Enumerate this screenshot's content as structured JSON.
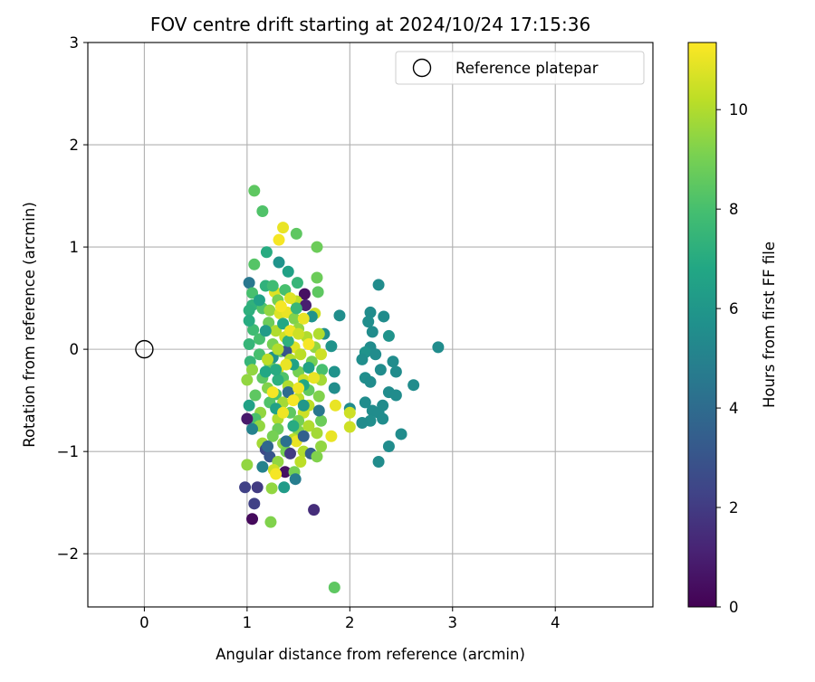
{
  "chart_data": {
    "type": "scatter",
    "title": "FOV centre drift starting at 2024/10/24 17:15:36",
    "xlabel": "Angular distance from reference (arcmin)",
    "ylabel": "Rotation from reference (arcmin)",
    "xlim": [
      -0.55,
      4.95
    ],
    "ylim": [
      -2.52,
      3.0
    ],
    "xticks": [
      0,
      1,
      2,
      3,
      4
    ],
    "xtick_labels": [
      "0",
      "1",
      "2",
      "3",
      "4"
    ],
    "yticks": [
      -2,
      -1,
      0,
      1,
      2,
      3
    ],
    "ytick_labels": [
      "−2",
      "−1",
      "0",
      "1",
      "2",
      "3"
    ],
    "grid": true,
    "legend": {
      "position": "top-right",
      "entries": [
        "Reference platepar"
      ]
    },
    "reference_point": {
      "x": 0,
      "y": 0,
      "label": "Reference platepar"
    },
    "colorbar": {
      "label": "Hours from first FF file",
      "colormap": "viridis",
      "range": [
        0,
        11.35
      ],
      "ticks": [
        0,
        2,
        4,
        6,
        8,
        10
      ],
      "tick_labels": [
        "0",
        "2",
        "4",
        "6",
        "8",
        "10"
      ]
    },
    "series": [
      {
        "name": "Hours from first FF file",
        "points": [
          [
            1.07,
            1.55,
            8.5
          ],
          [
            1.15,
            1.35,
            8.2
          ],
          [
            1.35,
            1.19,
            11.0
          ],
          [
            1.48,
            1.13,
            8.5
          ],
          [
            1.31,
            1.07,
            11.2
          ],
          [
            1.68,
            1.0,
            8.8
          ],
          [
            1.19,
            0.95,
            7.0
          ],
          [
            1.31,
            0.85,
            5.8
          ],
          [
            1.07,
            0.83,
            8.3
          ],
          [
            1.4,
            0.76,
            6.5
          ],
          [
            1.68,
            0.7,
            8.8
          ],
          [
            1.49,
            0.65,
            7.5
          ],
          [
            1.02,
            0.65,
            4.5
          ],
          [
            1.18,
            0.62,
            7.3
          ],
          [
            2.28,
            0.63,
            5.5
          ],
          [
            1.27,
            0.56,
            10.8
          ],
          [
            1.69,
            0.56,
            8.5
          ],
          [
            1.05,
            0.55,
            8.0
          ],
          [
            1.56,
            0.54,
            0.5
          ],
          [
            1.37,
            0.58,
            8.0
          ],
          [
            1.3,
            0.48,
            9.0
          ],
          [
            1.48,
            0.47,
            10.2
          ],
          [
            1.57,
            0.43,
            1.0
          ],
          [
            1.05,
            0.43,
            7.3
          ],
          [
            1.15,
            0.4,
            8.2
          ],
          [
            1.22,
            0.38,
            9.5
          ],
          [
            1.32,
            0.35,
            10.8
          ],
          [
            1.39,
            0.36,
            11.0
          ],
          [
            1.66,
            0.35,
            10.5
          ],
          [
            1.02,
            0.38,
            7.2
          ],
          [
            1.21,
            0.26,
            8.8
          ],
          [
            1.46,
            0.3,
            9.2
          ],
          [
            1.63,
            0.32,
            5.8
          ],
          [
            1.9,
            0.33,
            5.6
          ],
          [
            2.2,
            0.36,
            5.5
          ],
          [
            2.33,
            0.32,
            5.5
          ],
          [
            1.28,
            0.18,
            10.0
          ],
          [
            1.5,
            0.2,
            9.5
          ],
          [
            1.06,
            0.19,
            7.8
          ],
          [
            2.18,
            0.27,
            5.6
          ],
          [
            1.12,
            0.1,
            8.0
          ],
          [
            1.37,
            0.12,
            10.5
          ],
          [
            1.58,
            0.12,
            10.0
          ],
          [
            1.75,
            0.15,
            5.6
          ],
          [
            2.22,
            0.17,
            5.5
          ],
          [
            2.38,
            0.13,
            5.8
          ],
          [
            1.02,
            0.05,
            7.5
          ],
          [
            1.25,
            0.05,
            9.0
          ],
          [
            1.46,
            0.02,
            10.8
          ],
          [
            1.66,
            0.02,
            9.5
          ],
          [
            1.82,
            0.03,
            5.8
          ],
          [
            2.2,
            0.02,
            5.5
          ],
          [
            2.86,
            0.02,
            5.5
          ],
          [
            1.33,
            -0.02,
            8.5
          ],
          [
            1.12,
            -0.05,
            8.0
          ],
          [
            1.38,
            -0.02,
            3.0
          ],
          [
            1.52,
            -0.05,
            10.2
          ],
          [
            1.72,
            -0.05,
            10.5
          ],
          [
            2.15,
            -0.03,
            5.8
          ],
          [
            2.25,
            -0.05,
            5.5
          ],
          [
            1.03,
            -0.12,
            7.5
          ],
          [
            1.22,
            -0.14,
            8.8
          ],
          [
            1.42,
            -0.1,
            10.0
          ],
          [
            1.63,
            -0.12,
            9.0
          ],
          [
            2.12,
            -0.1,
            5.6
          ],
          [
            2.42,
            -0.12,
            5.5
          ],
          [
            1.05,
            -0.2,
            9.5
          ],
          [
            1.3,
            -0.2,
            10.8
          ],
          [
            1.5,
            -0.22,
            9.0
          ],
          [
            1.73,
            -0.2,
            8.0
          ],
          [
            1.85,
            -0.22,
            5.8
          ],
          [
            2.3,
            -0.2,
            5.5
          ],
          [
            2.45,
            -0.22,
            5.5
          ],
          [
            1.0,
            -0.3,
            9.5
          ],
          [
            1.15,
            -0.28,
            8.5
          ],
          [
            1.35,
            -0.28,
            8.2
          ],
          [
            1.55,
            -0.3,
            10.5
          ],
          [
            1.72,
            -0.3,
            9.8
          ],
          [
            2.15,
            -0.28,
            5.6
          ],
          [
            2.2,
            -0.32,
            5.5
          ],
          [
            2.62,
            -0.35,
            5.5
          ],
          [
            1.2,
            -0.38,
            9.2
          ],
          [
            1.4,
            -0.36,
            10.0
          ],
          [
            1.6,
            -0.4,
            8.6
          ],
          [
            1.85,
            -0.38,
            5.6
          ],
          [
            2.38,
            -0.42,
            5.5
          ],
          [
            2.45,
            -0.45,
            5.5
          ],
          [
            1.08,
            -0.45,
            8.5
          ],
          [
            1.28,
            -0.44,
            8.0
          ],
          [
            1.5,
            -0.48,
            10.2
          ],
          [
            1.7,
            -0.46,
            9.2
          ],
          [
            1.02,
            -0.55,
            6.5
          ],
          [
            1.22,
            -0.52,
            8.2
          ],
          [
            1.35,
            -0.52,
            9.8
          ],
          [
            1.6,
            -0.55,
            10.2
          ],
          [
            1.86,
            -0.55,
            11.0
          ],
          [
            2.15,
            -0.52,
            5.5
          ],
          [
            2.32,
            -0.55,
            5.5
          ],
          [
            1.13,
            -0.62,
            9.5
          ],
          [
            1.42,
            -0.62,
            8.5
          ],
          [
            1.55,
            -0.62,
            10.5
          ],
          [
            2.0,
            -0.58,
            5.5
          ],
          [
            2.22,
            -0.6,
            5.5
          ],
          [
            2.28,
            -0.62,
            5.5
          ],
          [
            1.08,
            -0.68,
            8.0
          ],
          [
            1.3,
            -0.68,
            10.0
          ],
          [
            1.5,
            -0.7,
            9.0
          ],
          [
            1.72,
            -0.7,
            8.8
          ],
          [
            2.0,
            -0.62,
            10.5
          ],
          [
            2.2,
            -0.7,
            5.6
          ],
          [
            2.32,
            -0.68,
            5.5
          ],
          [
            1.0,
            -0.68,
            0.8
          ],
          [
            1.12,
            -0.75,
            9.5
          ],
          [
            1.3,
            -0.78,
            8.8
          ],
          [
            1.5,
            -0.8,
            9.2
          ],
          [
            1.6,
            -0.75,
            10.0
          ],
          [
            2.0,
            -0.76,
            10.5
          ],
          [
            2.12,
            -0.72,
            5.5
          ],
          [
            1.05,
            -0.78,
            5.0
          ],
          [
            1.25,
            -0.85,
            9.0
          ],
          [
            1.45,
            -0.88,
            10.2
          ],
          [
            1.68,
            -0.82,
            9.8
          ],
          [
            1.82,
            -0.85,
            11.0
          ],
          [
            2.5,
            -0.83,
            5.5
          ],
          [
            1.15,
            -0.92,
            9.8
          ],
          [
            1.35,
            -0.92,
            9.5
          ],
          [
            1.48,
            -0.9,
            11.0
          ],
          [
            1.72,
            -0.95,
            9.5
          ],
          [
            2.38,
            -0.95,
            5.5
          ],
          [
            1.18,
            -0.98,
            2.5
          ],
          [
            1.38,
            -1.0,
            9.0
          ],
          [
            1.55,
            -1.0,
            10.0
          ],
          [
            1.22,
            -1.05,
            3.0
          ],
          [
            1.42,
            -1.02,
            2.0
          ],
          [
            1.62,
            -1.02,
            3.5
          ],
          [
            1.68,
            -1.05,
            9.2
          ],
          [
            1.3,
            -1.1,
            9.5
          ],
          [
            1.52,
            -1.1,
            10.2
          ],
          [
            2.28,
            -1.1,
            5.5
          ],
          [
            1.15,
            -1.15,
            5.0
          ],
          [
            1.0,
            -1.13,
            9.5
          ],
          [
            1.26,
            -1.18,
            10.5
          ],
          [
            1.37,
            -1.2,
            0.5
          ],
          [
            1.46,
            -1.2,
            9.0
          ],
          [
            1.28,
            -1.22,
            11.2
          ],
          [
            1.47,
            -1.27,
            4.8
          ],
          [
            0.98,
            -1.35,
            2.2
          ],
          [
            1.1,
            -1.35,
            2.0
          ],
          [
            1.24,
            -1.36,
            9.5
          ],
          [
            1.36,
            -1.35,
            6.2
          ],
          [
            1.07,
            -1.51,
            2.2
          ],
          [
            1.65,
            -1.57,
            1.5
          ],
          [
            1.05,
            -1.66,
            0.3
          ],
          [
            1.23,
            -1.69,
            9.2
          ],
          [
            1.85,
            -2.33,
            8.5
          ],
          [
            1.02,
            0.28,
            7.0
          ],
          [
            1.18,
            0.18,
            6.2
          ],
          [
            1.25,
            -0.08,
            5.8
          ],
          [
            1.45,
            -0.15,
            6.5
          ],
          [
            1.35,
            0.25,
            6.8
          ],
          [
            1.4,
            0.08,
            7.2
          ],
          [
            1.55,
            -0.35,
            6.8
          ],
          [
            1.28,
            -0.58,
            6.5
          ],
          [
            1.45,
            -0.75,
            7.0
          ],
          [
            1.6,
            -0.18,
            6.5
          ],
          [
            1.18,
            -0.22,
            6.8
          ],
          [
            1.48,
            0.4,
            7.5
          ],
          [
            1.3,
            -0.3,
            7.2
          ],
          [
            1.4,
            -0.42,
            4.0
          ],
          [
            1.55,
            -0.85,
            3.5
          ],
          [
            1.7,
            -0.6,
            4.5
          ],
          [
            1.12,
            0.48,
            6.5
          ],
          [
            1.25,
            0.62,
            7.8
          ],
          [
            1.42,
            0.18,
            11.1
          ],
          [
            1.33,
            0.42,
            11.2
          ],
          [
            1.42,
            0.5,
            10.8
          ],
          [
            1.55,
            0.3,
            11.0
          ],
          [
            1.6,
            0.05,
            11.2
          ],
          [
            1.38,
            -0.15,
            11.0
          ],
          [
            1.5,
            -0.38,
            11.1
          ],
          [
            1.25,
            -0.42,
            11.2
          ],
          [
            1.65,
            -0.28,
            11.0
          ],
          [
            1.35,
            -0.62,
            11.1
          ],
          [
            1.45,
            -0.5,
            11.2
          ],
          [
            1.2,
            -0.1,
            10.2
          ],
          [
            1.3,
            0.0,
            10.0
          ],
          [
            1.5,
            0.15,
            10.5
          ],
          [
            1.7,
            0.15,
            10.0
          ],
          [
            1.28,
            -0.2,
            7.0
          ],
          [
            1.38,
            -0.9,
            4.2
          ],
          [
            1.2,
            -0.95,
            3.8
          ],
          [
            1.55,
            -0.55,
            6.0
          ]
        ]
      }
    ]
  }
}
